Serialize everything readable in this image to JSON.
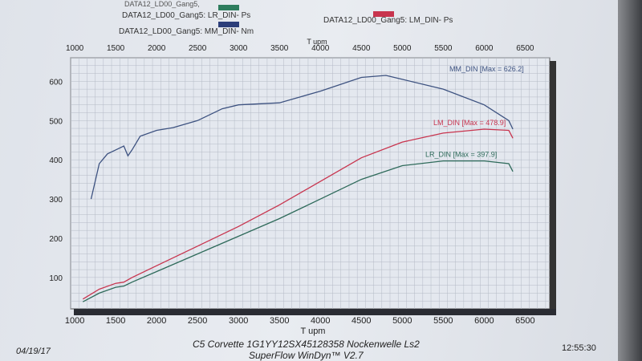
{
  "header": {
    "partial_top": "DATA12_LD00_Gang5,"
  },
  "legend": [
    {
      "label": "DATA12_LD00_Gang5: LR_DIN- Ps",
      "color": "#2e7d5e"
    },
    {
      "label": "DATA12_LD00_Gang5: MM_DIN- Nm",
      "color": "#2c3e7a"
    },
    {
      "label": "DATA12_LD00_Gang5: LM_DIN- Ps",
      "color": "#c8344e"
    }
  ],
  "footer": {
    "date": "04/19/17",
    "line1": "C5 Corvette 1G1YY12SX45128358 Nockenwelle Ls2",
    "line2": "SuperFlow WinDyn™ V2.7",
    "time": "12:55:30"
  },
  "chart_data": {
    "type": "line",
    "xlabel": "T   upm",
    "xticks": [
      1000,
      1500,
      2000,
      2500,
      3000,
      3500,
      4000,
      4500,
      5000,
      5500,
      6000,
      6500
    ],
    "yticks": [
      100,
      200,
      300,
      400,
      500,
      600
    ],
    "xlim": [
      950,
      6800
    ],
    "ylim": [
      20,
      660
    ],
    "grid": true,
    "series": [
      {
        "name": "MM_DIN",
        "annotation": "MM_DIN [Max = 626.2]",
        "color": "#3d5280",
        "x": [
          1200,
          1300,
          1400,
          1500,
          1600,
          1650,
          1700,
          1800,
          2000,
          2200,
          2500,
          2800,
          3000,
          3500,
          4000,
          4500,
          4800,
          5000,
          5500,
          6000,
          6300,
          6350
        ],
        "y": [
          300,
          390,
          415,
          425,
          435,
          410,
          425,
          460,
          475,
          482,
          500,
          530,
          540,
          545,
          575,
          610,
          615,
          605,
          580,
          540,
          500,
          478
        ]
      },
      {
        "name": "LM_DIN",
        "annotation": "LM_DIN [Max = 478.9]",
        "color": "#c8344e",
        "x": [
          1100,
          1300,
          1500,
          1600,
          1700,
          2000,
          2500,
          3000,
          3500,
          4000,
          4500,
          5000,
          5500,
          6000,
          6300,
          6350
        ],
        "y": [
          45,
          70,
          85,
          88,
          100,
          130,
          180,
          230,
          285,
          345,
          405,
          445,
          468,
          478,
          475,
          455
        ],
        "unit": "Ps"
      },
      {
        "name": "LR_DIN",
        "annotation": "LR_DIN [Max = 397.9]",
        "color": "#2e6a5a",
        "x": [
          1100,
          1300,
          1500,
          1600,
          1700,
          2000,
          2500,
          3000,
          3500,
          4000,
          4500,
          5000,
          5500,
          6000,
          6300,
          6350
        ],
        "y": [
          38,
          60,
          75,
          78,
          88,
          115,
          160,
          205,
          250,
          300,
          350,
          385,
          397,
          397,
          390,
          370
        ],
        "unit": "Ps"
      }
    ]
  }
}
